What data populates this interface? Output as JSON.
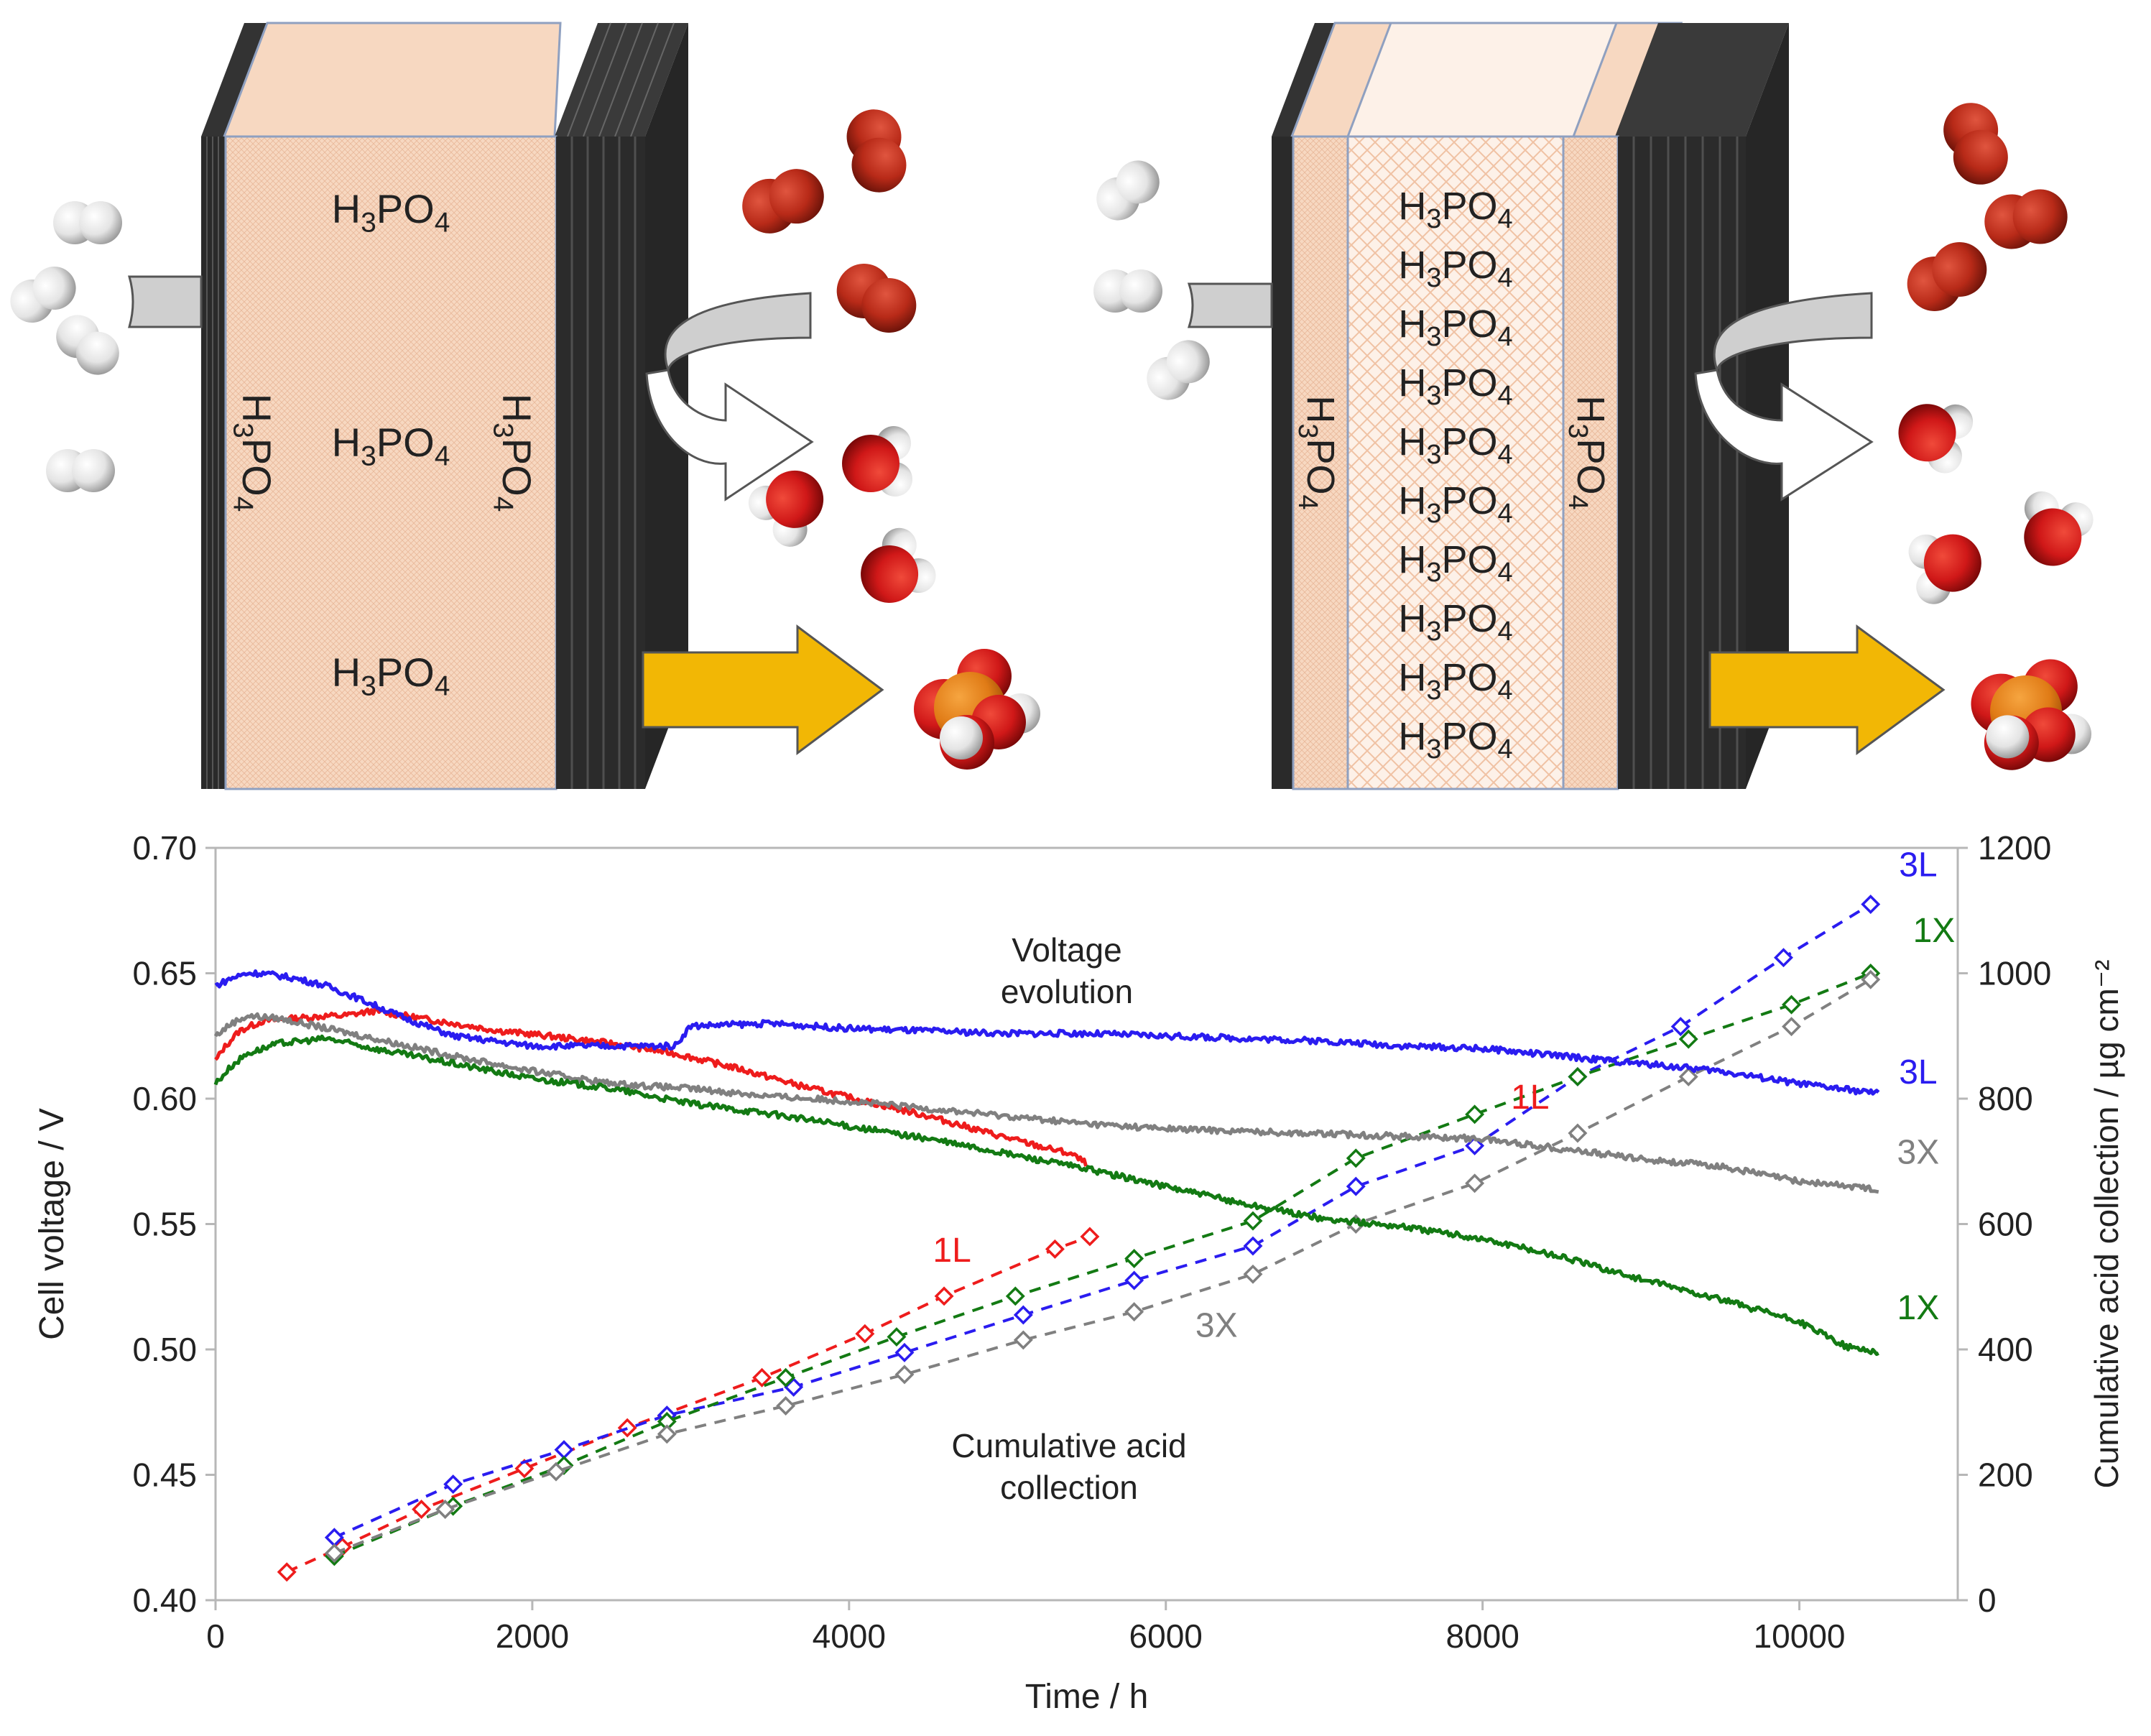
{
  "schematic": {
    "left_cell": {
      "horizontal_labels": [
        "H3PO4",
        "H3PO4",
        "H3PO4"
      ],
      "side_labels": [
        "H3PO4",
        "H3PO4"
      ]
    },
    "right_cell": {
      "horizontal_labels": [
        "H3PO4",
        "H3PO4",
        "H3PO4",
        "H3PO4",
        "H3PO4",
        "H3PO4",
        "H3PO4",
        "H3PO4",
        "H3PO4",
        "H3PO4"
      ],
      "side_labels": [
        "H3PO4",
        "H3PO4"
      ]
    },
    "icons": [
      "hydrogen-molecule-icon",
      "oxygen-molecule-icon",
      "water-molecule-icon",
      "phosphoric-acid-molecule-icon",
      "gray-curved-arrow-icon",
      "white-curved-arrow-icon",
      "yellow-arrow-icon"
    ],
    "colors": {
      "electrolyte": "#f6d5bd",
      "electrode": "#2a2a2a",
      "oxygen": "#b82a18",
      "hydrogen": "#eeeeee",
      "phosphorus": "#e07b16",
      "acid_arrow": "#f2b705"
    }
  },
  "chart_data": {
    "type": "line",
    "xlabel": "Time / h",
    "ylabel": "Cell voltage / V",
    "y2label": "Cumulative acid collection / µg cm⁻²",
    "xlim": [
      0,
      11000
    ],
    "ylim": [
      0.4,
      0.7
    ],
    "y2lim": [
      0,
      1200
    ],
    "x_ticks": [
      0,
      2000,
      4000,
      6000,
      8000,
      10000
    ],
    "x_tick_labels": [
      "0",
      "2000",
      "4000",
      "6000",
      "8000",
      "10000"
    ],
    "y_ticks": [
      0.4,
      0.45,
      0.5,
      0.55,
      0.6,
      0.65,
      0.7
    ],
    "y_tick_labels": [
      "0.40",
      "0.45",
      "0.50",
      "0.55",
      "0.60",
      "0.65",
      "0.70"
    ],
    "y2_ticks": [
      0,
      200,
      400,
      600,
      800,
      1000,
      1200
    ],
    "y2_tick_labels": [
      "0",
      "200",
      "400",
      "600",
      "800",
      "1000",
      "1200"
    ],
    "grid": false,
    "annotations": {
      "voltage": [
        "Voltage",
        "evolution"
      ],
      "acid": [
        "Cumulative acid",
        "collection"
      ]
    },
    "voltage_series": [
      {
        "name": "1L",
        "color": "#ee1c1c",
        "x": [
          0,
          50,
          150,
          300,
          500,
          700,
          800,
          1000,
          1200,
          1500,
          1800,
          2100,
          2500,
          2900,
          3300,
          3700,
          4100,
          4500,
          4900,
          5200,
          5400,
          5500
        ],
        "y": [
          0.615,
          0.62,
          0.627,
          0.631,
          0.632,
          0.633,
          0.633,
          0.635,
          0.633,
          0.63,
          0.627,
          0.625,
          0.622,
          0.618,
          0.612,
          0.605,
          0.599,
          0.593,
          0.586,
          0.581,
          0.578,
          0.574
        ]
      },
      {
        "name": "3L",
        "color": "#2a1cf0",
        "x": [
          0,
          100,
          200,
          300,
          500,
          700,
          900,
          1200,
          1500,
          2000,
          2500,
          2900,
          3000,
          3500,
          4000,
          4500,
          5000,
          5500,
          6000,
          6500,
          7000,
          7500,
          8000,
          8500,
          9000,
          9500,
          10000,
          10500
        ],
        "y": [
          0.645,
          0.648,
          0.65,
          0.65,
          0.648,
          0.645,
          0.64,
          0.632,
          0.625,
          0.621,
          0.621,
          0.621,
          0.629,
          0.63,
          0.628,
          0.627,
          0.626,
          0.626,
          0.625,
          0.624,
          0.623,
          0.621,
          0.62,
          0.617,
          0.614,
          0.611,
          0.606,
          0.602
        ]
      },
      {
        "name": "3X",
        "color": "#808080",
        "x": [
          0,
          100,
          200,
          400,
          700,
          1000,
          1500,
          2000,
          2500,
          3000,
          3500,
          4000,
          4500,
          5000,
          5500,
          6000,
          6500,
          7000,
          7500,
          8000,
          8500,
          9000,
          9500,
          10000,
          10500
        ],
        "y": [
          0.625,
          0.63,
          0.633,
          0.632,
          0.628,
          0.624,
          0.617,
          0.611,
          0.606,
          0.604,
          0.601,
          0.599,
          0.596,
          0.593,
          0.59,
          0.588,
          0.587,
          0.586,
          0.585,
          0.584,
          0.58,
          0.576,
          0.573,
          0.567,
          0.564
        ]
      },
      {
        "name": "1X",
        "color": "#137a13",
        "x": [
          0,
          100,
          200,
          400,
          700,
          1000,
          1500,
          2000,
          2500,
          3000,
          3500,
          4000,
          4500,
          5000,
          5500,
          6000,
          6500,
          7000,
          7500,
          8000,
          8500,
          9000,
          9500,
          10000,
          10300,
          10500
        ],
        "y": [
          0.606,
          0.613,
          0.618,
          0.622,
          0.624,
          0.62,
          0.614,
          0.608,
          0.604,
          0.598,
          0.594,
          0.589,
          0.584,
          0.578,
          0.572,
          0.565,
          0.558,
          0.552,
          0.549,
          0.544,
          0.537,
          0.528,
          0.52,
          0.511,
          0.501,
          0.499
        ]
      }
    ],
    "acid_series": [
      {
        "name": "1L",
        "color": "#ee1c1c",
        "x": [
          450,
          800,
          1300,
          1950,
          2600,
          3450,
          4100,
          4600,
          5300,
          5520
        ],
        "y": [
          45,
          85,
          145,
          210,
          275,
          355,
          425,
          485,
          560,
          580
        ]
      },
      {
        "name": "3L",
        "color": "#2a1cf0",
        "x": [
          750,
          1500,
          2200,
          2850,
          3650,
          4350,
          5100,
          5800,
          6550,
          7200,
          7950,
          8600,
          9250,
          9900,
          10450
        ],
        "y": [
          100,
          185,
          240,
          295,
          340,
          395,
          455,
          510,
          565,
          660,
          725,
          835,
          915,
          1025,
          1110
        ]
      },
      {
        "name": "1X",
        "color": "#137a13",
        "x": [
          750,
          1500,
          2200,
          2850,
          3600,
          4300,
          5050,
          5800,
          6550,
          7200,
          7950,
          8600,
          9300,
          9950,
          10450
        ],
        "y": [
          70,
          150,
          215,
          285,
          355,
          420,
          485,
          545,
          605,
          705,
          775,
          835,
          895,
          950,
          1000
        ]
      },
      {
        "name": "3X",
        "color": "#808080",
        "x": [
          750,
          1450,
          2150,
          2850,
          3600,
          4350,
          5100,
          5800,
          6550,
          7200,
          7950,
          8600,
          9300,
          9950,
          10450
        ],
        "y": [
          75,
          145,
          205,
          265,
          310,
          360,
          415,
          460,
          520,
          600,
          665,
          745,
          835,
          915,
          990
        ]
      }
    ],
    "series_labels": [
      {
        "text": "1L",
        "color": "#ee1c1c",
        "x": 8300,
        "axis": "y",
        "y": 0.596
      },
      {
        "text": "3L",
        "color": "#2a1cf0",
        "x": 10750,
        "axis": "y",
        "y": 0.606
      },
      {
        "text": "3X",
        "color": "#808080",
        "x": 10750,
        "axis": "y",
        "y": 0.574
      },
      {
        "text": "1X",
        "color": "#137a13",
        "x": 10750,
        "axis": "y",
        "y": 0.512
      },
      {
        "text": "1L",
        "color": "#ee1c1c",
        "x": 4650,
        "axis": "y2",
        "y": 540
      },
      {
        "text": "3X",
        "color": "#808080",
        "x": 6320,
        "axis": "y2",
        "y": 420
      },
      {
        "text": "3L",
        "color": "#2a1cf0",
        "x": 10750,
        "axis": "y2",
        "y": 1155
      },
      {
        "text": "1X",
        "color": "#137a13",
        "x": 10850,
        "axis": "y2",
        "y": 1050
      }
    ]
  }
}
